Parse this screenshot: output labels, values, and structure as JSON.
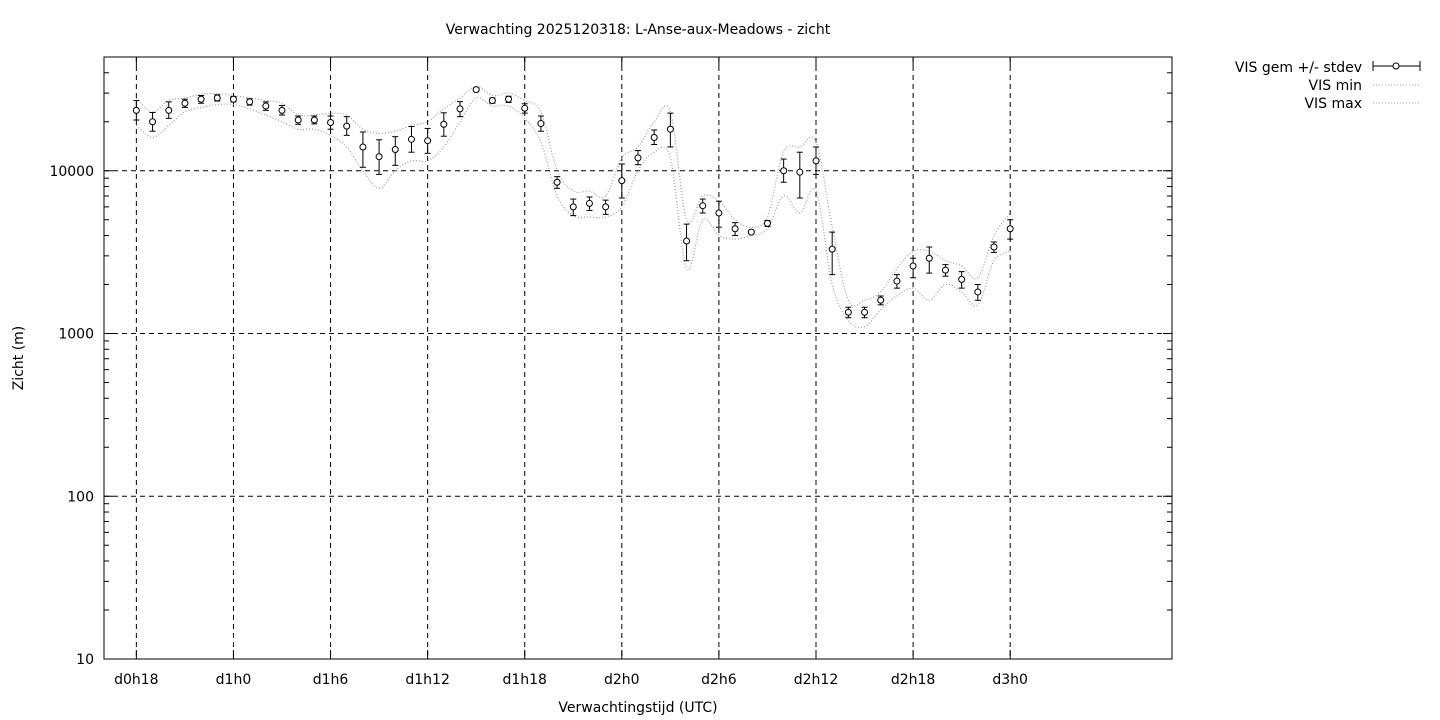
{
  "chart_data": {
    "type": "scatter",
    "title": "Verwachting 2025120318: L-Anse-aux-Meadows - zicht",
    "xlabel": "Verwachtingstijd (UTC)",
    "ylabel": "Zicht (m)",
    "x_unit": "hours since d0h0",
    "xlim": [
      16,
      82
    ],
    "ylim": [
      10,
      50000
    ],
    "yscale": "log",
    "grid": true,
    "legend_position": "outside-top-right",
    "x_ticks": [
      {
        "x": 18,
        "label": "d0h18"
      },
      {
        "x": 24,
        "label": "d1h0"
      },
      {
        "x": 30,
        "label": "d1h6"
      },
      {
        "x": 36,
        "label": "d1h12"
      },
      {
        "x": 42,
        "label": "d1h18"
      },
      {
        "x": 48,
        "label": "d2h0"
      },
      {
        "x": 54,
        "label": "d2h6"
      },
      {
        "x": 60,
        "label": "d2h12"
      },
      {
        "x": 66,
        "label": "d2h18"
      },
      {
        "x": 72,
        "label": "d3h0"
      }
    ],
    "y_ticks": [
      {
        "y": 10,
        "label": "10"
      },
      {
        "y": 100,
        "label": "100"
      },
      {
        "y": 1000,
        "label": "1000"
      },
      {
        "y": 10000,
        "label": "10000"
      }
    ],
    "series": [
      {
        "name": "VIS gem +/- stdev",
        "style": "errorbars",
        "x": [
          18,
          19,
          20,
          21,
          22,
          23,
          24,
          25,
          26,
          27,
          28,
          29,
          30,
          31,
          32,
          33,
          34,
          35,
          36,
          37,
          38,
          39,
          40,
          41,
          42,
          43,
          44,
          45,
          46,
          47,
          48,
          49,
          50,
          51,
          52,
          53,
          54,
          55,
          56,
          57,
          58,
          59,
          60,
          61,
          62,
          63,
          64,
          65,
          66,
          67,
          68,
          69,
          70,
          71,
          72
        ],
        "mean": [
          23500,
          20000,
          23500,
          26000,
          27500,
          28000,
          27500,
          26500,
          25000,
          23500,
          20500,
          20500,
          19800,
          18800,
          14000,
          12200,
          13500,
          15600,
          15300,
          19300,
          24000,
          31500,
          27000,
          27500,
          24200,
          19500,
          8500,
          6000,
          6300,
          6000,
          8700,
          12000,
          16000,
          18000,
          3700,
          6100,
          5500,
          4400,
          4200,
          4750,
          10000,
          9800,
          11500,
          3300,
          1350,
          1350,
          1600,
          2100,
          2600,
          2900,
          2450,
          2150,
          1800,
          3400,
          4400
        ],
        "low": [
          20500,
          17500,
          21000,
          24500,
          26000,
          26800,
          26500,
          25300,
          23500,
          22000,
          19300,
          19400,
          18000,
          16500,
          10500,
          9500,
          10800,
          13000,
          12800,
          16300,
          21500,
          30800,
          26000,
          26300,
          22600,
          17500,
          7800,
          5300,
          5700,
          5400,
          6800,
          10900,
          14500,
          14000,
          2800,
          5500,
          4500,
          4000,
          4100,
          4550,
          8500,
          6800,
          9500,
          2300,
          1250,
          1250,
          1500,
          1900,
          2200,
          2350,
          2250,
          1900,
          1600,
          3150,
          3800
        ],
        "high": [
          27000,
          22800,
          26500,
          27500,
          29000,
          29300,
          28600,
          27700,
          26500,
          25200,
          21700,
          21700,
          21700,
          21500,
          17300,
          15500,
          16200,
          18700,
          18200,
          22700,
          26600,
          32200,
          28000,
          28700,
          25800,
          21700,
          9200,
          6700,
          6900,
          6600,
          11000,
          13300,
          17800,
          22600,
          4700,
          6700,
          6500,
          4800,
          4300,
          4950,
          11800,
          13000,
          14000,
          4200,
          1450,
          1450,
          1700,
          2300,
          2900,
          3400,
          2650,
          2400,
          2000,
          3650,
          5000
        ]
      },
      {
        "name": "VIS min",
        "style": "dotted",
        "x": [
          18,
          19,
          20,
          21,
          22,
          23,
          24,
          25,
          26,
          27,
          28,
          29,
          30,
          31,
          32,
          33,
          34,
          35,
          36,
          37,
          38,
          39,
          40,
          41,
          42,
          43,
          44,
          45,
          46,
          47,
          48,
          49,
          50,
          51,
          52,
          53,
          54,
          55,
          56,
          57,
          58,
          59,
          60,
          61,
          62,
          63,
          64,
          65,
          66,
          67,
          68,
          69,
          70,
          71,
          72
        ],
        "values": [
          19000,
          16000,
          19000,
          23000,
          24500,
          25500,
          25500,
          24000,
          22000,
          20000,
          18000,
          18000,
          16500,
          14000,
          10000,
          7800,
          10000,
          11500,
          11500,
          14000,
          20000,
          28000,
          25000,
          25000,
          21000,
          15000,
          7000,
          5300,
          5200,
          5200,
          6000,
          10000,
          13000,
          12000,
          2500,
          5000,
          4000,
          3800,
          4000,
          4400,
          7000,
          5500,
          7500,
          2000,
          1200,
          1100,
          1400,
          1700,
          1900,
          1600,
          2000,
          1800,
          1500,
          2800,
          3200
        ]
      },
      {
        "name": "VIS max",
        "style": "dotted",
        "x": [
          18,
          19,
          20,
          21,
          22,
          23,
          24,
          25,
          26,
          27,
          28,
          29,
          30,
          31,
          32,
          33,
          34,
          35,
          36,
          37,
          38,
          39,
          40,
          41,
          42,
          43,
          44,
          45,
          46,
          47,
          48,
          49,
          50,
          51,
          52,
          53,
          54,
          55,
          56,
          57,
          58,
          59,
          60,
          61,
          62,
          63,
          64,
          65,
          66,
          67,
          68,
          69,
          70,
          71,
          72
        ],
        "values": [
          28000,
          23000,
          27000,
          28000,
          29500,
          29800,
          29000,
          28000,
          27000,
          26000,
          22000,
          22000,
          22500,
          22000,
          18000,
          17000,
          17500,
          19000,
          20000,
          24000,
          28000,
          33000,
          29000,
          30000,
          27000,
          23000,
          10000,
          7500,
          7500,
          7000,
          12000,
          14000,
          20000,
          23000,
          5000,
          7000,
          6500,
          5000,
          4500,
          5200,
          13000,
          14000,
          15000,
          4500,
          1600,
          1600,
          1800,
          2500,
          3200,
          3200,
          2800,
          2600,
          2200,
          4000,
          5500
        ]
      }
    ]
  }
}
